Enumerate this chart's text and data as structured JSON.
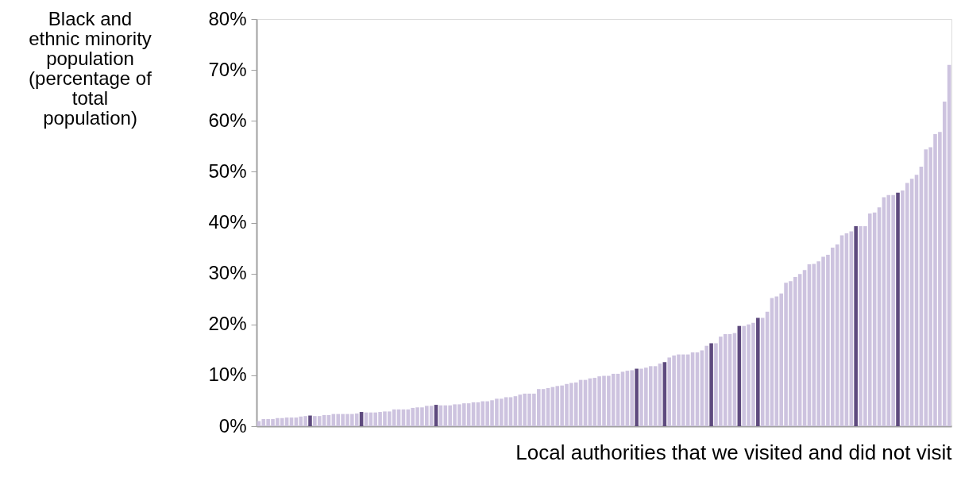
{
  "chart_data": {
    "type": "bar",
    "ylabel": "Black and ethnic minority population (percentage of total population)",
    "xlabel": "Local authorities that we visited and did not visit",
    "categories": [
      null,
      null,
      null,
      null,
      null,
      null,
      null,
      null,
      null,
      null,
      null,
      null,
      null,
      null,
      null,
      null,
      null,
      null,
      null,
      null,
      null,
      null,
      null,
      null,
      null,
      null,
      null,
      null,
      null,
      null,
      null,
      null,
      null,
      null,
      null,
      null,
      null,
      null,
      null,
      null,
      null,
      null,
      null,
      null,
      null,
      null,
      null,
      null,
      null,
      null,
      null,
      null,
      null,
      null,
      null,
      null,
      null,
      null,
      null,
      null,
      null,
      null,
      null,
      null,
      null,
      null,
      null,
      null,
      null,
      null,
      null,
      null,
      null,
      null,
      null,
      null,
      null,
      null,
      null,
      null,
      null,
      null,
      null,
      null,
      null,
      null,
      null,
      null,
      null,
      null,
      null,
      null,
      null,
      null,
      null,
      null,
      null,
      null,
      null,
      null,
      null,
      null,
      null,
      null,
      null,
      null,
      null,
      null,
      null,
      null,
      null,
      null,
      null,
      null,
      null,
      null,
      null,
      null,
      null,
      null,
      null,
      null,
      null,
      null,
      null,
      null,
      null,
      null,
      null,
      null,
      null,
      null,
      null,
      null,
      null,
      null,
      null,
      null,
      null,
      null,
      null,
      null,
      null,
      null,
      null,
      null,
      null,
      null,
      null
    ],
    "values": [
      1.0,
      1.4,
      1.4,
      1.4,
      1.6,
      1.6,
      1.7,
      1.7,
      1.7,
      1.9,
      2.0,
      2.1,
      2.0,
      2.0,
      2.2,
      2.2,
      2.4,
      2.4,
      2.4,
      2.4,
      2.4,
      2.5,
      2.8,
      2.7,
      2.7,
      2.7,
      2.8,
      2.9,
      2.9,
      3.3,
      3.3,
      3.3,
      3.3,
      3.6,
      3.7,
      3.7,
      4.0,
      4.0,
      4.2,
      4.1,
      4.1,
      4.1,
      4.3,
      4.3,
      4.5,
      4.5,
      4.7,
      4.7,
      4.9,
      4.9,
      5.1,
      5.4,
      5.4,
      5.7,
      5.7,
      5.9,
      6.2,
      6.4,
      6.4,
      6.4,
      7.3,
      7.3,
      7.5,
      7.7,
      7.9,
      8.0,
      8.3,
      8.5,
      8.6,
      9.1,
      9.1,
      9.4,
      9.5,
      9.8,
      9.9,
      9.9,
      10.3,
      10.3,
      10.7,
      10.9,
      11.0,
      11.3,
      11.3,
      11.5,
      11.8,
      11.8,
      12.3,
      12.6,
      13.5,
      13.9,
      14.1,
      14.1,
      14.1,
      14.5,
      14.5,
      14.9,
      15.8,
      16.3,
      16.3,
      17.6,
      18.1,
      18.1,
      18.3,
      19.7,
      19.7,
      20.0,
      20.3,
      21.3,
      21.3,
      22.5,
      25.2,
      25.5,
      26.1,
      28.2,
      28.5,
      29.3,
      29.9,
      30.7,
      31.8,
      31.9,
      32.4,
      33.3,
      33.7,
      35.1,
      35.7,
      37.5,
      37.9,
      38.3,
      39.3,
      39.3,
      39.3,
      41.8,
      42.0,
      43.0,
      45.0,
      45.4,
      45.4,
      45.9,
      46.3,
      47.8,
      48.6,
      49.4,
      51.0,
      54.4,
      54.8,
      57.4,
      57.8,
      63.8,
      71.0
    ],
    "colors": [
      "#cdc3df",
      "#cdc3df",
      "#cdc3df",
      "#cdc3df",
      "#cdc3df",
      "#cdc3df",
      "#cdc3df",
      "#cdc3df",
      "#cdc3df",
      "#cdc3df",
      "#cdc3df",
      "#5e4a7e",
      "#cdc3df",
      "#cdc3df",
      "#cdc3df",
      "#cdc3df",
      "#cdc3df",
      "#cdc3df",
      "#cdc3df",
      "#cdc3df",
      "#cdc3df",
      "#cdc3df",
      "#5e4a7e",
      "#cdc3df",
      "#cdc3df",
      "#cdc3df",
      "#cdc3df",
      "#cdc3df",
      "#cdc3df",
      "#cdc3df",
      "#cdc3df",
      "#cdc3df",
      "#cdc3df",
      "#cdc3df",
      "#cdc3df",
      "#cdc3df",
      "#cdc3df",
      "#cdc3df",
      "#5e4a7e",
      "#cdc3df",
      "#cdc3df",
      "#cdc3df",
      "#cdc3df",
      "#cdc3df",
      "#cdc3df",
      "#cdc3df",
      "#cdc3df",
      "#cdc3df",
      "#cdc3df",
      "#cdc3df",
      "#cdc3df",
      "#cdc3df",
      "#cdc3df",
      "#cdc3df",
      "#cdc3df",
      "#cdc3df",
      "#cdc3df",
      "#cdc3df",
      "#cdc3df",
      "#cdc3df",
      "#cdc3df",
      "#cdc3df",
      "#cdc3df",
      "#cdc3df",
      "#cdc3df",
      "#cdc3df",
      "#cdc3df",
      "#cdc3df",
      "#cdc3df",
      "#cdc3df",
      "#cdc3df",
      "#cdc3df",
      "#cdc3df",
      "#cdc3df",
      "#cdc3df",
      "#cdc3df",
      "#cdc3df",
      "#cdc3df",
      "#cdc3df",
      "#cdc3df",
      "#cdc3df",
      "#5e4a7e",
      "#cdc3df",
      "#cdc3df",
      "#cdc3df",
      "#cdc3df",
      "#cdc3df",
      "#5e4a7e",
      "#cdc3df",
      "#cdc3df",
      "#cdc3df",
      "#cdc3df",
      "#cdc3df",
      "#cdc3df",
      "#cdc3df",
      "#cdc3df",
      "#cdc3df",
      "#5e4a7e",
      "#cdc3df",
      "#cdc3df",
      "#cdc3df",
      "#cdc3df",
      "#cdc3df",
      "#5e4a7e",
      "#cdc3df",
      "#cdc3df",
      "#cdc3df",
      "#5e4a7e",
      "#cdc3df",
      "#cdc3df",
      "#cdc3df",
      "#cdc3df",
      "#cdc3df",
      "#cdc3df",
      "#cdc3df",
      "#cdc3df",
      "#cdc3df",
      "#cdc3df",
      "#cdc3df",
      "#cdc3df",
      "#cdc3df",
      "#cdc3df",
      "#cdc3df",
      "#cdc3df",
      "#cdc3df",
      "#cdc3df",
      "#cdc3df",
      "#cdc3df",
      "#5e4a7e",
      "#cdc3df",
      "#cdc3df",
      "#cdc3df",
      "#cdc3df",
      "#cdc3df",
      "#cdc3df",
      "#cdc3df",
      "#cdc3df",
      "#5e4a7e",
      "#cdc3df",
      "#cdc3df",
      "#cdc3df",
      "#cdc3df",
      "#cdc3df",
      "#cdc3df",
      "#cdc3df",
      "#cdc3df",
      "#cdc3df",
      "#cdc3df",
      "#cdc3df"
    ],
    "ylim": [
      0,
      80
    ],
    "yticks": [
      {
        "value": 0,
        "label": "0%"
      },
      {
        "value": 10,
        "label": "10%"
      },
      {
        "value": 20,
        "label": "20%"
      },
      {
        "value": 30,
        "label": "30%"
      },
      {
        "value": 40,
        "label": "40%"
      },
      {
        "value": 50,
        "label": "50%"
      },
      {
        "value": 60,
        "label": "60%"
      },
      {
        "value": 70,
        "label": "70%"
      },
      {
        "value": 80,
        "label": "80%"
      }
    ],
    "tick_labels": "y",
    "grid": false
  }
}
